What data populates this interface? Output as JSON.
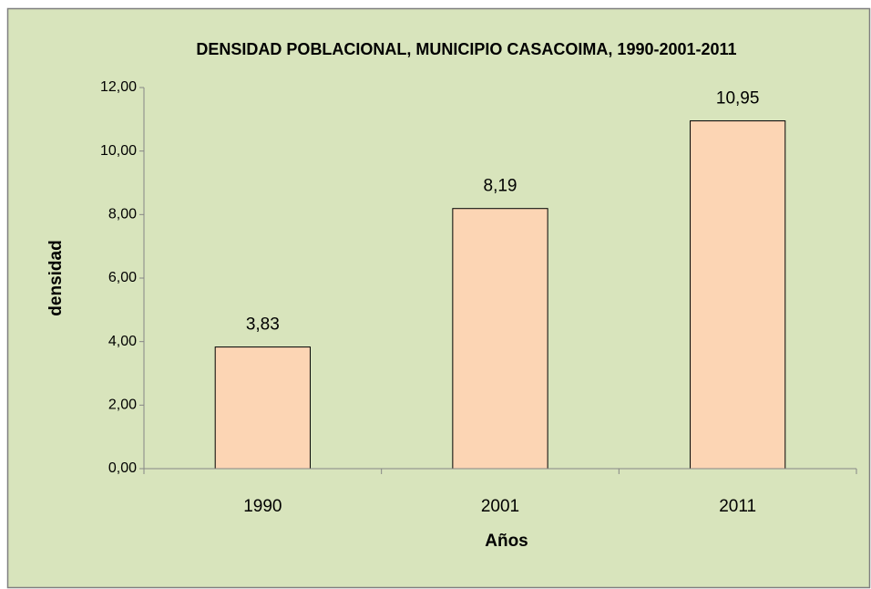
{
  "chart_data": {
    "type": "bar",
    "title": "DENSIDAD POBLACIONAL, MUNICIPIO CASACOIMA, 1990-2001-2011",
    "x_label": "Años",
    "y_label": "densidad",
    "categories": [
      "1990",
      "2001",
      "2011"
    ],
    "values": [
      3.83,
      8.19,
      10.95
    ],
    "value_labels": [
      "3,83",
      "8,19",
      "10,95"
    ],
    "color": "#fcd5b4",
    "ylim": [
      0,
      12
    ],
    "yticks": [
      {
        "value": 0,
        "label": "0,00"
      },
      {
        "value": 2,
        "label": "2,00"
      },
      {
        "value": 4,
        "label": "4,00"
      },
      {
        "value": 6,
        "label": "6,00"
      },
      {
        "value": 8,
        "label": "8,00"
      },
      {
        "value": 10,
        "label": "10,00"
      },
      {
        "value": 12,
        "label": "12,00"
      }
    ],
    "grid": false
  }
}
